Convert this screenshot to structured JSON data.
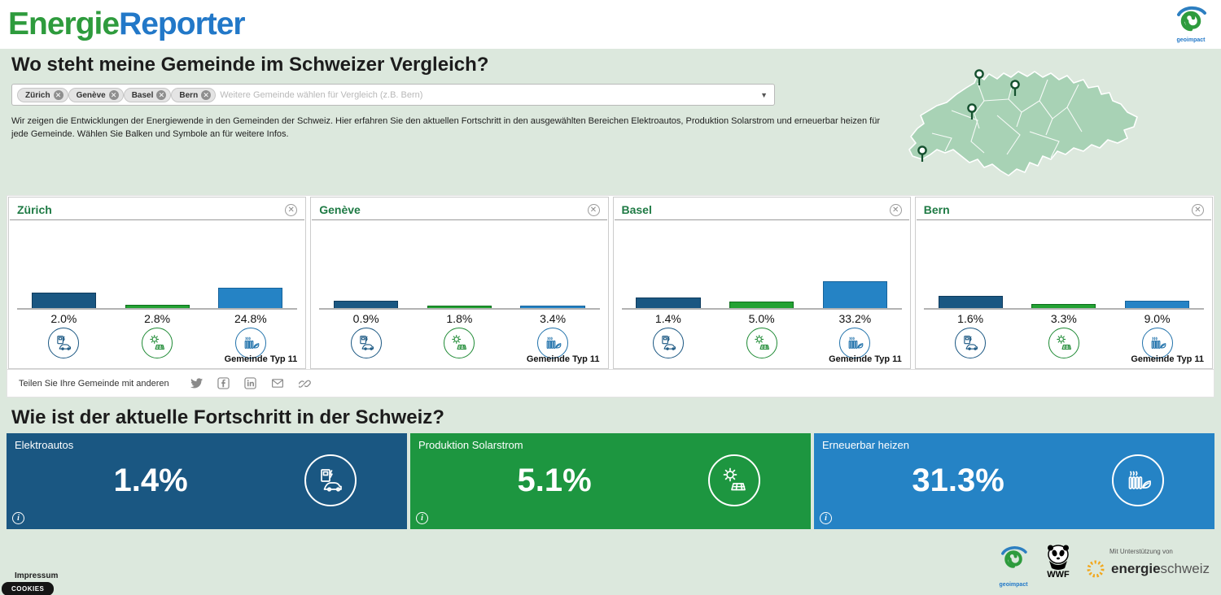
{
  "header": {
    "logo_green": "Energie",
    "logo_blue": "Reporter",
    "brand_label": "geoimpact"
  },
  "hero": {
    "title": "Wo steht meine Gemeinde im Schweizer Vergleich?",
    "select": {
      "chips": [
        "Zürich",
        "Genève",
        "Basel",
        "Bern"
      ],
      "placeholder": "Weitere Gemeinde wählen für Vergleich (z.B. Bern)"
    },
    "description": "Wir zeigen die Entwicklungen der Energiewende in den Gemeinden der Schweiz. Hier erfahren Sie den aktuellen Fortschritt in den ausgewählten Bereichen Elektroautos, Produktion Solarstrom und erneuerbar heizen für jede Gemeinde. Wählen Sie Balken und Symbole an für weitere Infos."
  },
  "chart_data": [
    {
      "type": "bar",
      "title": "Zürich",
      "categories": [
        "Elektroautos",
        "Produktion Solarstrom",
        "Erneuerbar heizen"
      ],
      "values": [
        2.0,
        2.8,
        24.8
      ],
      "value_labels": [
        "2.0%",
        "2.8%",
        "24.8%"
      ],
      "footer": "Gemeinde Typ 11"
    },
    {
      "type": "bar",
      "title": "Genève",
      "categories": [
        "Elektroautos",
        "Produktion Solarstrom",
        "Erneuerbar heizen"
      ],
      "values": [
        0.9,
        1.8,
        3.4
      ],
      "value_labels": [
        "0.9%",
        "1.8%",
        "3.4%"
      ],
      "footer": "Gemeinde Typ 11"
    },
    {
      "type": "bar",
      "title": "Basel",
      "categories": [
        "Elektroautos",
        "Produktion Solarstrom",
        "Erneuerbar heizen"
      ],
      "values": [
        1.4,
        5.0,
        33.2
      ],
      "value_labels": [
        "1.4%",
        "5.0%",
        "33.2%"
      ],
      "footer": "Gemeinde Typ 11"
    },
    {
      "type": "bar",
      "title": "Bern",
      "categories": [
        "Elektroautos",
        "Produktion Solarstrom",
        "Erneuerbar heizen"
      ],
      "values": [
        1.6,
        3.3,
        9.0
      ],
      "value_labels": [
        "1.6%",
        "3.3%",
        "9.0%"
      ],
      "footer": "Gemeinde Typ 11"
    }
  ],
  "bar_colors": {
    "elektroautos": "#1a5782",
    "solarstrom": "#23a233",
    "heizen": "#2583c5"
  },
  "share": {
    "label": "Teilen Sie Ihre Gemeinde mit anderen",
    "icons": [
      "twitter",
      "facebook",
      "linkedin",
      "email",
      "link"
    ]
  },
  "switzerland": {
    "title": "Wie ist der aktuelle Fortschritt in der Schweiz?",
    "cards": [
      {
        "label": "Elektroautos",
        "value": "1.4%",
        "color": "#1a5782",
        "icon": "ev"
      },
      {
        "label": "Produktion Solarstrom",
        "value": "5.1%",
        "color": "#1d9640",
        "icon": "solar"
      },
      {
        "label": "Erneuerbar heizen",
        "value": "31.3%",
        "color": "#2583c5",
        "icon": "heat"
      }
    ]
  },
  "footer": {
    "impressum": "Impressum",
    "cookies": "COOKIES",
    "geoimpact_label": "geoimpact",
    "wwf_label": "WWF",
    "support_text": "Mit Unterstützung von",
    "energie_bold": "energie",
    "schweiz_light": "schweiz"
  }
}
